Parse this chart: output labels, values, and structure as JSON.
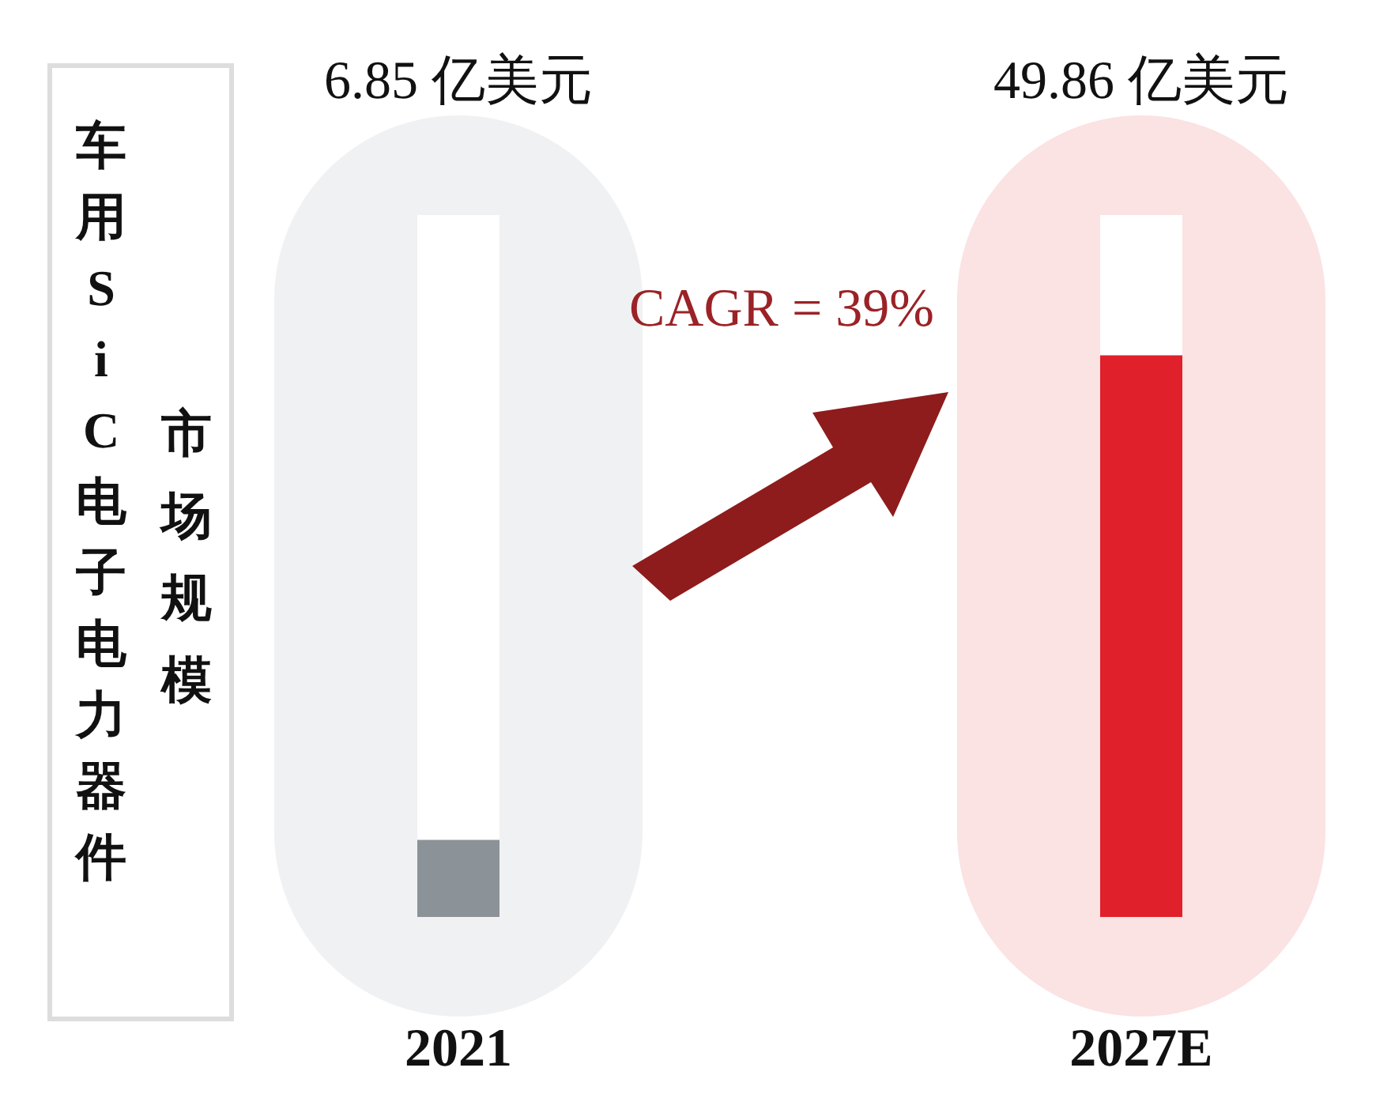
{
  "chart_data": {
    "type": "bar",
    "title": "车用SiC电子电力器件",
    "subtitle": "市场规模",
    "annotations": [
      "CAGR = 39%"
    ],
    "categories": [
      "2021",
      "2027E"
    ],
    "values": [
      6.85,
      49.86
    ],
    "colors": [
      "#8b9298",
      "#e0202a"
    ],
    "value_labels": [
      "6.85 亿美元",
      "49.86 亿美元"
    ]
  }
}
